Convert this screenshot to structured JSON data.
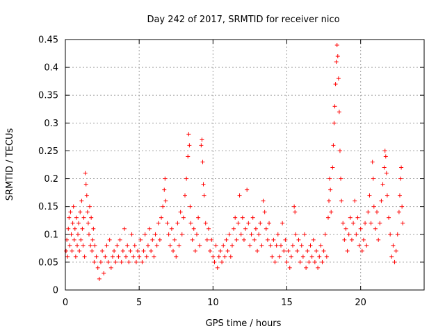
{
  "chart_data": {
    "type": "scatter",
    "title": "Day 242 of 2017, SRMTID for receiver nico",
    "xlabel": "GPS time / hours",
    "ylabel": "SRMTID / TECUs",
    "xlim": [
      0,
      24.3
    ],
    "ylim": [
      0,
      0.45
    ],
    "xticks": [
      0,
      5,
      10,
      15,
      20
    ],
    "xtick_labels": [
      "0",
      "5",
      "10",
      "15",
      "20"
    ],
    "yticks": [
      0,
      0.05,
      0.1,
      0.15,
      0.2,
      0.25,
      0.3,
      0.35,
      0.4,
      0.45
    ],
    "ytick_labels": [
      "0",
      "0.05",
      "0.1",
      "0.15",
      "0.2",
      "0.25",
      "0.3",
      "0.35",
      "0.4",
      "0.45"
    ],
    "grid": true,
    "marker": "+",
    "color": "#ff0000",
    "series": [
      {
        "name": "SRMTID",
        "points": [
          [
            0.05,
            0.07
          ],
          [
            0.1,
            0.09
          ],
          [
            0.15,
            0.06
          ],
          [
            0.2,
            0.11
          ],
          [
            0.25,
            0.13
          ],
          [
            0.3,
            0.08
          ],
          [
            0.35,
            0.14
          ],
          [
            0.4,
            0.1
          ],
          [
            0.45,
            0.07
          ],
          [
            0.5,
            0.12
          ],
          [
            0.55,
            0.15
          ],
          [
            0.6,
            0.09
          ],
          [
            0.65,
            0.11
          ],
          [
            0.7,
            0.06
          ],
          [
            0.75,
            0.13
          ],
          [
            0.8,
            0.08
          ],
          [
            0.85,
            0.1
          ],
          [
            0.9,
            0.12
          ],
          [
            0.95,
            0.07
          ],
          [
            1.0,
            0.14
          ],
          [
            1.05,
            0.09
          ],
          [
            1.1,
            0.16
          ],
          [
            1.15,
            0.11
          ],
          [
            1.2,
            0.08
          ],
          [
            1.25,
            0.13
          ],
          [
            1.3,
            0.06
          ],
          [
            1.35,
            0.21
          ],
          [
            1.4,
            0.19
          ],
          [
            1.45,
            0.17
          ],
          [
            1.5,
            0.14
          ],
          [
            1.55,
            0.12
          ],
          [
            1.6,
            0.1
          ],
          [
            1.65,
            0.15
          ],
          [
            1.7,
            0.08
          ],
          [
            1.75,
            0.13
          ],
          [
            1.8,
            0.07
          ],
          [
            1.85,
            0.09
          ],
          [
            1.9,
            0.11
          ],
          [
            1.95,
            0.05
          ],
          [
            2.0,
            0.08
          ],
          [
            2.1,
            0.06
          ],
          [
            2.2,
            0.04
          ],
          [
            2.3,
            0.02
          ],
          [
            2.4,
            0.05
          ],
          [
            2.5,
            0.07
          ],
          [
            2.6,
            0.03
          ],
          [
            2.7,
            0.06
          ],
          [
            2.8,
            0.08
          ],
          [
            2.9,
            0.05
          ],
          [
            3.0,
            0.09
          ],
          [
            3.1,
            0.04
          ],
          [
            3.2,
            0.06
          ],
          [
            3.3,
            0.07
          ],
          [
            3.4,
            0.05
          ],
          [
            3.5,
            0.08
          ],
          [
            3.6,
            0.06
          ],
          [
            3.7,
            0.09
          ],
          [
            3.8,
            0.05
          ],
          [
            3.9,
            0.07
          ],
          [
            4.0,
            0.11
          ],
          [
            4.1,
            0.06
          ],
          [
            4.2,
            0.08
          ],
          [
            4.3,
            0.05
          ],
          [
            4.4,
            0.07
          ],
          [
            4.5,
            0.1
          ],
          [
            4.6,
            0.06
          ],
          [
            4.7,
            0.08
          ],
          [
            4.8,
            0.05
          ],
          [
            4.9,
            0.07
          ],
          [
            5.0,
            0.06
          ],
          [
            5.1,
            0.09
          ],
          [
            5.2,
            0.05
          ],
          [
            5.3,
            0.07
          ],
          [
            5.4,
            0.1
          ],
          [
            5.5,
            0.06
          ],
          [
            5.6,
            0.08
          ],
          [
            5.7,
            0.11
          ],
          [
            5.8,
            0.07
          ],
          [
            5.9,
            0.09
          ],
          [
            6.0,
            0.06
          ],
          [
            6.1,
            0.1
          ],
          [
            6.2,
            0.08
          ],
          [
            6.3,
            0.12
          ],
          [
            6.4,
            0.09
          ],
          [
            6.5,
            0.13
          ],
          [
            6.6,
            0.15
          ],
          [
            6.7,
            0.18
          ],
          [
            6.75,
            0.2
          ],
          [
            6.8,
            0.16
          ],
          [
            6.9,
            0.12
          ],
          [
            7.0,
            0.1
          ],
          [
            7.1,
            0.08
          ],
          [
            7.2,
            0.11
          ],
          [
            7.3,
            0.07
          ],
          [
            7.4,
            0.09
          ],
          [
            7.5,
            0.06
          ],
          [
            7.6,
            0.12
          ],
          [
            7.7,
            0.08
          ],
          [
            7.8,
            0.14
          ],
          [
            7.9,
            0.1
          ],
          [
            8.0,
            0.13
          ],
          [
            8.1,
            0.17
          ],
          [
            8.2,
            0.2
          ],
          [
            8.3,
            0.24
          ],
          [
            8.35,
            0.28
          ],
          [
            8.4,
            0.26
          ],
          [
            8.45,
            0.15
          ],
          [
            8.5,
            0.12
          ],
          [
            8.6,
            0.09
          ],
          [
            8.7,
            0.11
          ],
          [
            8.8,
            0.07
          ],
          [
            8.9,
            0.1
          ],
          [
            9.0,
            0.13
          ],
          [
            9.1,
            0.08
          ],
          [
            9.2,
            0.26
          ],
          [
            9.25,
            0.27
          ],
          [
            9.3,
            0.23
          ],
          [
            9.35,
            0.19
          ],
          [
            9.4,
            0.17
          ],
          [
            9.5,
            0.12
          ],
          [
            9.6,
            0.09
          ],
          [
            9.7,
            0.11
          ],
          [
            9.8,
            0.07
          ],
          [
            9.9,
            0.09
          ],
          [
            10.0,
            0.06
          ],
          [
            10.1,
            0.05
          ],
          [
            10.2,
            0.08
          ],
          [
            10.3,
            0.04
          ],
          [
            10.4,
            0.06
          ],
          [
            10.5,
            0.07
          ],
          [
            10.6,
            0.05
          ],
          [
            10.7,
            0.08
          ],
          [
            10.8,
            0.06
          ],
          [
            10.9,
            0.09
          ],
          [
            11.0,
            0.07
          ],
          [
            11.1,
            0.1
          ],
          [
            11.2,
            0.06
          ],
          [
            11.3,
            0.08
          ],
          [
            11.4,
            0.11
          ],
          [
            11.5,
            0.13
          ],
          [
            11.6,
            0.09
          ],
          [
            11.7,
            0.12
          ],
          [
            11.8,
            0.17
          ],
          [
            11.9,
            0.1
          ],
          [
            12.0,
            0.13
          ],
          [
            12.1,
            0.09
          ],
          [
            12.2,
            0.11
          ],
          [
            12.3,
            0.18
          ],
          [
            12.4,
            0.12
          ],
          [
            12.5,
            0.08
          ],
          [
            12.6,
            0.1
          ],
          [
            12.7,
            0.13
          ],
          [
            12.8,
            0.09
          ],
          [
            12.9,
            0.11
          ],
          [
            13.0,
            0.07
          ],
          [
            13.1,
            0.1
          ],
          [
            13.2,
            0.12
          ],
          [
            13.3,
            0.08
          ],
          [
            13.4,
            0.16
          ],
          [
            13.5,
            0.14
          ],
          [
            13.6,
            0.11
          ],
          [
            13.7,
            0.09
          ],
          [
            13.8,
            0.12
          ],
          [
            13.9,
            0.08
          ],
          [
            14.0,
            0.06
          ],
          [
            14.1,
            0.09
          ],
          [
            14.2,
            0.05
          ],
          [
            14.3,
            0.08
          ],
          [
            14.4,
            0.1
          ],
          [
            14.5,
            0.06
          ],
          [
            14.6,
            0.08
          ],
          [
            14.7,
            0.12
          ],
          [
            14.8,
            0.07
          ],
          [
            14.9,
            0.09
          ],
          [
            15.0,
            0.05
          ],
          [
            15.1,
            0.07
          ],
          [
            15.2,
            0.04
          ],
          [
            15.3,
            0.06
          ],
          [
            15.4,
            0.08
          ],
          [
            15.5,
            0.15
          ],
          [
            15.55,
            0.14
          ],
          [
            15.6,
            0.1
          ],
          [
            15.7,
            0.07
          ],
          [
            15.8,
            0.09
          ],
          [
            15.9,
            0.05
          ],
          [
            16.0,
            0.08
          ],
          [
            16.1,
            0.06
          ],
          [
            16.2,
            0.1
          ],
          [
            16.3,
            0.04
          ],
          [
            16.4,
            0.07
          ],
          [
            16.5,
            0.05
          ],
          [
            16.6,
            0.08
          ],
          [
            16.7,
            0.06
          ],
          [
            16.8,
            0.09
          ],
          [
            16.9,
            0.05
          ],
          [
            17.0,
            0.07
          ],
          [
            17.1,
            0.04
          ],
          [
            17.2,
            0.06
          ],
          [
            17.3,
            0.08
          ],
          [
            17.4,
            0.05
          ],
          [
            17.5,
            0.07
          ],
          [
            17.6,
            0.1
          ],
          [
            17.7,
            0.06
          ],
          [
            17.8,
            0.13
          ],
          [
            17.85,
            0.16
          ],
          [
            17.9,
            0.2
          ],
          [
            17.95,
            0.18
          ],
          [
            18.0,
            0.14
          ],
          [
            18.1,
            0.22
          ],
          [
            18.15,
            0.26
          ],
          [
            18.2,
            0.3
          ],
          [
            18.25,
            0.33
          ],
          [
            18.3,
            0.37
          ],
          [
            18.35,
            0.41
          ],
          [
            18.4,
            0.44
          ],
          [
            18.45,
            0.42
          ],
          [
            18.5,
            0.38
          ],
          [
            18.55,
            0.32
          ],
          [
            18.6,
            0.25
          ],
          [
            18.65,
            0.2
          ],
          [
            18.7,
            0.16
          ],
          [
            18.8,
            0.12
          ],
          [
            18.9,
            0.09
          ],
          [
            19.0,
            0.11
          ],
          [
            19.1,
            0.07
          ],
          [
            19.2,
            0.1
          ],
          [
            19.3,
            0.13
          ],
          [
            19.4,
            0.09
          ],
          [
            19.5,
            0.12
          ],
          [
            19.6,
            0.16
          ],
          [
            19.7,
            0.1
          ],
          [
            19.8,
            0.13
          ],
          [
            19.9,
            0.08
          ],
          [
            20.0,
            0.11
          ],
          [
            20.1,
            0.07
          ],
          [
            20.2,
            0.09
          ],
          [
            20.3,
            0.12
          ],
          [
            20.4,
            0.08
          ],
          [
            20.5,
            0.14
          ],
          [
            20.6,
            0.17
          ],
          [
            20.7,
            0.12
          ],
          [
            20.8,
            0.23
          ],
          [
            20.85,
            0.2
          ],
          [
            20.9,
            0.15
          ],
          [
            21.0,
            0.11
          ],
          [
            21.1,
            0.14
          ],
          [
            21.2,
            0.09
          ],
          [
            21.3,
            0.12
          ],
          [
            21.4,
            0.16
          ],
          [
            21.5,
            0.19
          ],
          [
            21.6,
            0.22
          ],
          [
            21.65,
            0.25
          ],
          [
            21.7,
            0.24
          ],
          [
            21.75,
            0.21
          ],
          [
            21.8,
            0.17
          ],
          [
            21.9,
            0.13
          ],
          [
            22.0,
            0.1
          ],
          [
            22.1,
            0.06
          ],
          [
            22.2,
            0.08
          ],
          [
            22.3,
            0.05
          ],
          [
            22.4,
            0.07
          ],
          [
            22.5,
            0.1
          ],
          [
            22.6,
            0.14
          ],
          [
            22.65,
            0.17
          ],
          [
            22.7,
            0.2
          ],
          [
            22.75,
            0.22
          ],
          [
            22.8,
            0.15
          ],
          [
            22.85,
            0.12
          ]
        ]
      }
    ]
  }
}
